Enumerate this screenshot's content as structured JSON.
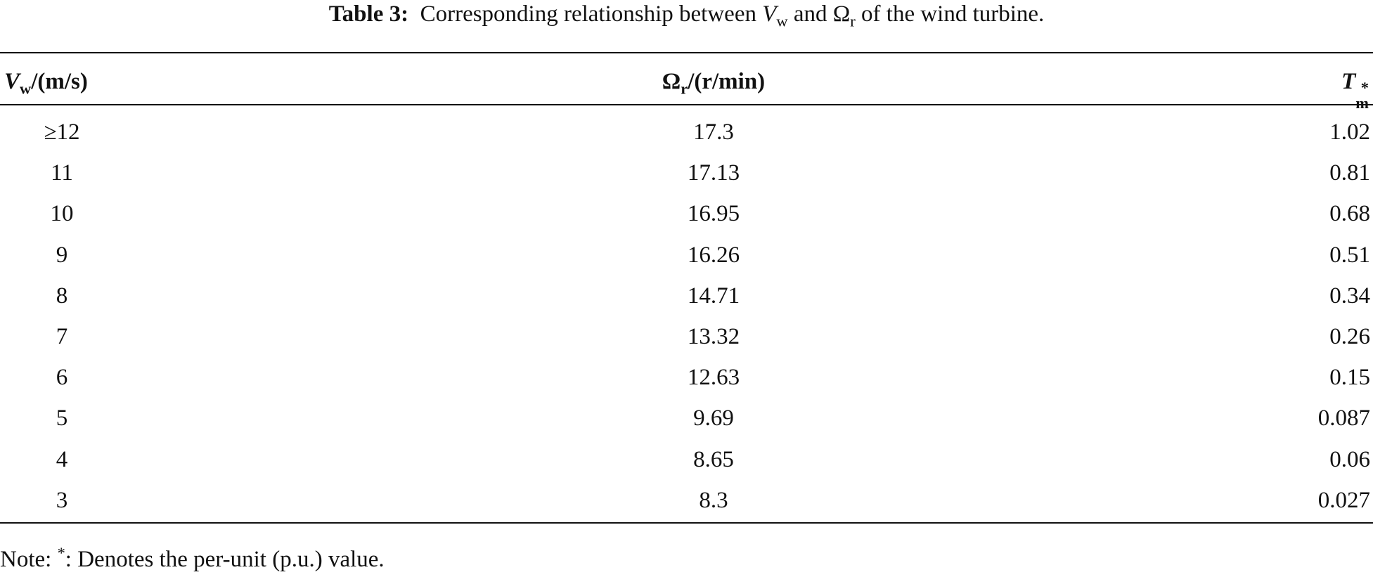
{
  "caption": {
    "label": "Table 3:",
    "text_before": "Corresponding relationship between",
    "var1": "V",
    "var1_sub": "w",
    "text_mid": "and",
    "var2": "Ω",
    "var2_sub": "r",
    "text_after": "of the wind turbine."
  },
  "table": {
    "header": [
      {
        "symbol": "V",
        "sub": "w",
        "unit": "/(m/s)"
      },
      {
        "symbol": "Ω",
        "sub": "r",
        "unit": "/(r/min)"
      },
      {
        "symbol": "T",
        "sup": "*",
        "sub": "m"
      }
    ],
    "rows": [
      [
        "≥12",
        "17.3",
        "1.02"
      ],
      [
        "11",
        "17.13",
        "0.81"
      ],
      [
        "10",
        "16.95",
        "0.68"
      ],
      [
        "9",
        "16.26",
        "0.51"
      ],
      [
        "8",
        "14.71",
        "0.34"
      ],
      [
        "7",
        "13.32",
        "0.26"
      ],
      [
        "6",
        "12.63",
        "0.15"
      ],
      [
        "5",
        "9.69",
        "0.087"
      ],
      [
        "4",
        "8.65",
        "0.06"
      ],
      [
        "3",
        "8.3",
        "0.027"
      ]
    ]
  },
  "note": {
    "prefix": "Note:",
    "mark": "*",
    "text": ": Denotes the per-unit (p.u.) value."
  }
}
